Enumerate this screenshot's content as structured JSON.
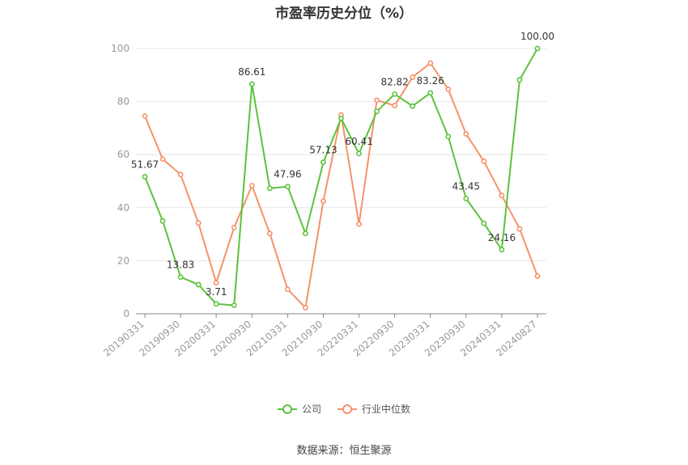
{
  "chart_data": {
    "type": "line",
    "title": "市盈率历史分位（%）",
    "x": [
      "20190331",
      "20190630",
      "20190930",
      "20191231",
      "20200331",
      "20200630",
      "20200930",
      "20201231",
      "20210331",
      "20210630",
      "20210930",
      "20211231",
      "20220331",
      "20220630",
      "20220930",
      "20221231",
      "20230331",
      "20230630",
      "20230930",
      "20231231",
      "20240331",
      "20240630",
      "20240827"
    ],
    "x_tick_labels": [
      "20190331",
      "20190930",
      "20200331",
      "20200930",
      "20210331",
      "20210930",
      "20220331",
      "20220930",
      "20230331",
      "20230930",
      "20240331",
      "20240827"
    ],
    "y_ticks": [
      0,
      20,
      40,
      60,
      80,
      100
    ],
    "ylim": [
      0,
      100
    ],
    "grid": true,
    "legend_position": "bottom",
    "series": [
      {
        "name": "公司",
        "color": "#5cc23c",
        "values": [
          51.67,
          35,
          13.83,
          11,
          3.71,
          3.2,
          86.61,
          47.3,
          47.96,
          30.3,
          57.13,
          73.7,
          60.41,
          76.3,
          82.82,
          78.3,
          83.26,
          66.8,
          43.45,
          34.1,
          24.16,
          88.2,
          100.0
        ],
        "data_labels": [
          {
            "index": 0,
            "text": "51.67"
          },
          {
            "index": 2,
            "text": "13.83"
          },
          {
            "index": 4,
            "text": "3.71"
          },
          {
            "index": 6,
            "text": "86.61"
          },
          {
            "index": 8,
            "text": "47.96"
          },
          {
            "index": 10,
            "text": "57.13"
          },
          {
            "index": 12,
            "text": "60.41"
          },
          {
            "index": 14,
            "text": "82.82"
          },
          {
            "index": 16,
            "text": "83.26"
          },
          {
            "index": 18,
            "text": "43.45"
          },
          {
            "index": 20,
            "text": "24.16"
          },
          {
            "index": 22,
            "text": "100.00"
          }
        ]
      },
      {
        "name": "行业中位数",
        "color": "#f5926a",
        "values": [
          74.5,
          58.3,
          52.5,
          34.2,
          11.7,
          32.5,
          48.3,
          30.3,
          9.2,
          2.3,
          42.5,
          75.0,
          33.8,
          80.5,
          78.5,
          89.2,
          94.5,
          84.6,
          67.8,
          57.5,
          44.6,
          32.0,
          14.2
        ]
      }
    ]
  },
  "legend": {
    "items": [
      {
        "label": "公司",
        "color": "#5cc23c"
      },
      {
        "label": "行业中位数",
        "color": "#f5926a"
      }
    ]
  },
  "footer": {
    "source": "数据来源：恒生聚源"
  }
}
